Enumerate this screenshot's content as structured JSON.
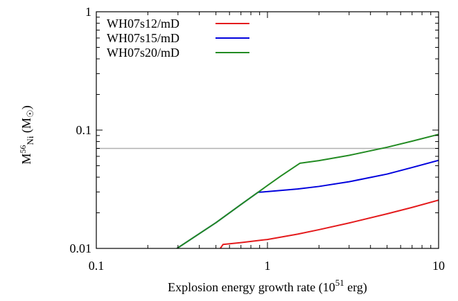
{
  "chart_data": {
    "type": "line",
    "title": "",
    "xlabel": {
      "text": "Explosion energy growth rate (10",
      "sup": "51",
      "suffix": " erg)"
    },
    "ylabel": {
      "text": "M",
      "sup": "56",
      "sub": "Ni",
      "unit_open": " (M",
      "unit_sub": "☉",
      "unit_close": ")"
    },
    "xscale": "log",
    "yscale": "log",
    "xlim": [
      0.1,
      10
    ],
    "ylim": [
      0.01,
      1
    ],
    "xticks": [
      {
        "value": 0.1,
        "label": "0.1"
      },
      {
        "value": 1,
        "label": "1"
      },
      {
        "value": 10,
        "label": "10"
      }
    ],
    "yticks": [
      {
        "value": 0.01,
        "label": "0.01"
      },
      {
        "value": 0.1,
        "label": "0.1"
      },
      {
        "value": 1,
        "label": "1"
      }
    ],
    "grid": false,
    "legend_position": "top-left",
    "reference_line": {
      "y": 0.07,
      "color": "#b0b0b0"
    },
    "series": [
      {
        "name": "WH07s12/mD",
        "color": "#e41a1c",
        "x": [
          0.52,
          0.55,
          0.7,
          1.0,
          1.5,
          2.0,
          3.0,
          5.0,
          7.0,
          10.0
        ],
        "y": [
          0.0096,
          0.0108,
          0.0112,
          0.0119,
          0.0132,
          0.0144,
          0.0164,
          0.0196,
          0.0222,
          0.0256
        ]
      },
      {
        "name": "WH07s15/mD",
        "color": "#0000dd",
        "x": [
          0.29,
          0.5,
          0.7,
          0.88,
          1.0,
          1.5,
          2.0,
          3.0,
          5.0,
          7.0,
          10.0
        ],
        "y": [
          0.0098,
          0.0165,
          0.0235,
          0.0298,
          0.0302,
          0.0318,
          0.0334,
          0.0366,
          0.0425,
          0.0483,
          0.0555
        ]
      },
      {
        "name": "WH07s20/mD",
        "color": "#228b22",
        "x": [
          0.29,
          0.5,
          0.7,
          0.88,
          1.0,
          1.2,
          1.55,
          2.0,
          3.0,
          5.0,
          7.0,
          10.0
        ],
        "y": [
          0.0098,
          0.0165,
          0.0235,
          0.0298,
          0.034,
          0.041,
          0.0525,
          0.0552,
          0.0612,
          0.0716,
          0.0806,
          0.092
        ]
      }
    ]
  }
}
